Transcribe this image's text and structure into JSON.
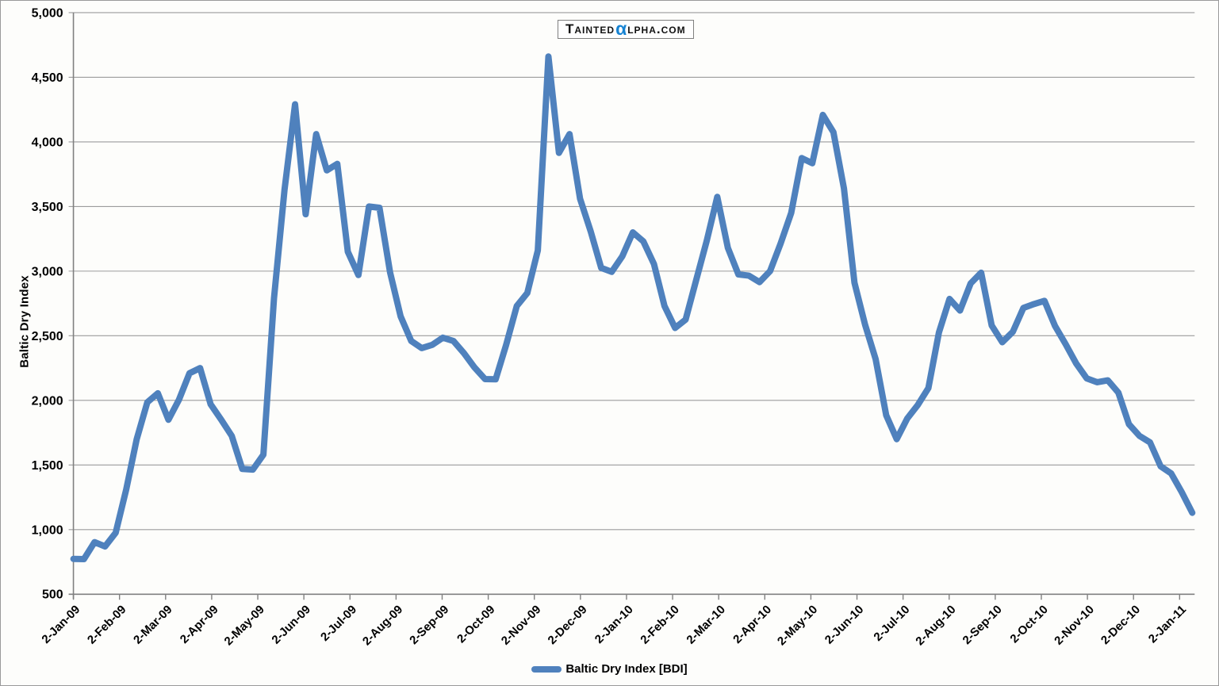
{
  "logo": {
    "prefix": "Tainted",
    "alpha": "α",
    "suffix": "lpha.com"
  },
  "chart_data": {
    "type": "line",
    "title": "",
    "xlabel": "",
    "ylabel": "Baltic Dry Index",
    "ylim": [
      500,
      5000
    ],
    "ytick_step": 500,
    "grid": "horizontal",
    "legend_position": "bottom-center",
    "line_color": "#4F81BD",
    "alpha_color": "#1683D3",
    "gridline_color": "#9C9C9C",
    "axis_color": "#808080",
    "text_color": "#000000",
    "y_tick_labels": [
      "500",
      "1,000",
      "1,500",
      "2,000",
      "2,500",
      "3,000",
      "3,500",
      "4,000",
      "4,500",
      "5,000"
    ],
    "x_tick_labels": [
      "2-Jan-09",
      "2-Feb-09",
      "2-Mar-09",
      "2-Apr-09",
      "2-May-09",
      "2-Jun-09",
      "2-Jul-09",
      "2-Aug-09",
      "2-Sep-09",
      "2-Oct-09",
      "2-Nov-09",
      "2-Dec-09",
      "2-Jan-10",
      "2-Feb-10",
      "2-Mar-10",
      "2-Apr-10",
      "2-May-10",
      "2-Jun-10",
      "2-Jul-10",
      "2-Aug-10",
      "2-Sep-10",
      "2-Oct-10",
      "2-Nov-10",
      "2-Dec-10",
      "2-Jan-11"
    ],
    "series": [
      {
        "name": "Baltic Dry Index [BDI]",
        "x": [
          "2-Jan-09",
          "9-Jan-09",
          "16-Jan-09",
          "23-Jan-09",
          "30-Jan-09",
          "6-Feb-09",
          "13-Feb-09",
          "20-Feb-09",
          "27-Feb-09",
          "6-Mar-09",
          "13-Mar-09",
          "20-Mar-09",
          "27-Mar-09",
          "3-Apr-09",
          "10-Apr-09",
          "17-Apr-09",
          "24-Apr-09",
          "1-May-09",
          "8-May-09",
          "15-May-09",
          "22-May-09",
          "29-May-09",
          "5-Jun-09",
          "12-Jun-09",
          "19-Jun-09",
          "26-Jun-09",
          "3-Jul-09",
          "10-Jul-09",
          "17-Jul-09",
          "24-Jul-09",
          "31-Jul-09",
          "7-Aug-09",
          "14-Aug-09",
          "21-Aug-09",
          "28-Aug-09",
          "4-Sep-09",
          "11-Sep-09",
          "18-Sep-09",
          "25-Sep-09",
          "2-Oct-09",
          "9-Oct-09",
          "16-Oct-09",
          "23-Oct-09",
          "30-Oct-09",
          "6-Nov-09",
          "13-Nov-09",
          "20-Nov-09",
          "27-Nov-09",
          "4-Dec-09",
          "11-Dec-09",
          "18-Dec-09",
          "25-Dec-09",
          "1-Jan-10",
          "8-Jan-10",
          "15-Jan-10",
          "22-Jan-10",
          "29-Jan-10",
          "5-Feb-10",
          "12-Feb-10",
          "19-Feb-10",
          "26-Feb-10",
          "5-Mar-10",
          "12-Mar-10",
          "19-Mar-10",
          "26-Mar-10",
          "2-Apr-10",
          "9-Apr-10",
          "16-Apr-10",
          "23-Apr-10",
          "30-Apr-10",
          "7-May-10",
          "14-May-10",
          "21-May-10",
          "28-May-10",
          "4-Jun-10",
          "11-Jun-10",
          "18-Jun-10",
          "25-Jun-10",
          "2-Jul-10",
          "9-Jul-10",
          "16-Jul-10",
          "23-Jul-10",
          "30-Jul-10",
          "6-Aug-10",
          "13-Aug-10",
          "20-Aug-10",
          "27-Aug-10",
          "3-Sep-10",
          "10-Sep-10",
          "17-Sep-10",
          "24-Sep-10",
          "1-Oct-10",
          "8-Oct-10",
          "15-Oct-10",
          "22-Oct-10",
          "29-Oct-10",
          "5-Nov-10",
          "12-Nov-10",
          "19-Nov-10",
          "26-Nov-10",
          "3-Dec-10",
          "10-Dec-10",
          "17-Dec-10",
          "24-Dec-10",
          "31-Dec-10",
          "7-Jan-11",
          "14-Jan-11"
        ],
        "values": [
          773,
          772,
          903,
          870,
          975,
          1310,
          1700,
          1985,
          2055,
          1850,
          2005,
          2210,
          2250,
          1970,
          1850,
          1725,
          1470,
          1464,
          1580,
          2790,
          3630,
          4291,
          3440,
          4060,
          3780,
          3830,
          3150,
          2970,
          3500,
          3490,
          2990,
          2650,
          2460,
          2405,
          2430,
          2485,
          2460,
          2365,
          2255,
          2165,
          2163,
          2430,
          2730,
          2830,
          3160,
          4661,
          3915,
          4060,
          3560,
          3310,
          3025,
          2995,
          3115,
          3300,
          3230,
          3055,
          2730,
          2560,
          2625,
          2930,
          3235,
          3575,
          3180,
          2975,
          2965,
          2915,
          3000,
          3215,
          3450,
          3875,
          3835,
          4209,
          4075,
          3640,
          2910,
          2585,
          2320,
          1885,
          1700,
          1860,
          1965,
          2095,
          2525,
          2785,
          2695,
          2905,
          2988,
          2580,
          2450,
          2530,
          2715,
          2745,
          2770,
          2575,
          2435,
          2285,
          2170,
          2140,
          2155,
          2060,
          1815,
          1725,
          1675,
          1490,
          1435,
          1290,
          1130
        ]
      }
    ]
  }
}
